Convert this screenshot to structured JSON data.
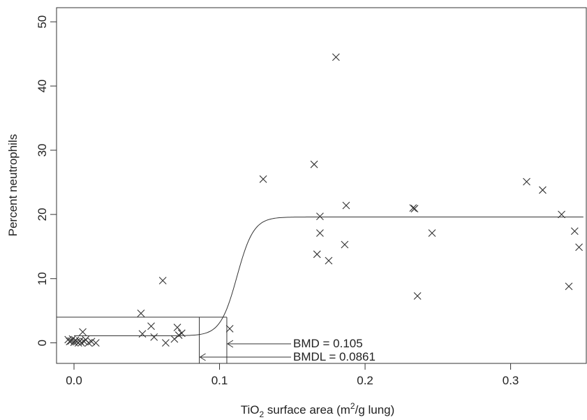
{
  "chart_data": {
    "type": "scatter",
    "title": "",
    "xlabel_parts": {
      "a": "TiO",
      "sub": "2",
      "b": " surface area (m",
      "sup": "2",
      "c": "/g lung)"
    },
    "ylabel": "Percent neutrophils",
    "xlim": [
      -0.012,
      0.352
    ],
    "ylim": [
      -3.2,
      52.2
    ],
    "x_ticks": [
      0.0,
      0.1,
      0.2,
      0.3
    ],
    "x_tick_labels": [
      "0.0",
      "0.1",
      "0.2",
      "0.3"
    ],
    "y_ticks": [
      0,
      10,
      20,
      30,
      40,
      50
    ],
    "y_tick_labels": [
      "0",
      "10",
      "20",
      "30",
      "40",
      "50"
    ],
    "grid": false,
    "marker": "x",
    "points": [
      [
        -0.004,
        0.5
      ],
      [
        -0.003,
        0.2
      ],
      [
        -0.002,
        0.3
      ],
      [
        -0.001,
        0.6
      ],
      [
        0.0,
        0.1
      ],
      [
        0.001,
        0.4
      ],
      [
        0.002,
        0.2
      ],
      [
        0.003,
        0.0
      ],
      [
        0.004,
        0.3
      ],
      [
        0.005,
        0.0
      ],
      [
        0.006,
        1.7
      ],
      [
        0.007,
        0.2
      ],
      [
        0.008,
        0.5
      ],
      [
        0.01,
        0.0
      ],
      [
        0.012,
        0.2
      ],
      [
        0.015,
        0.0
      ],
      [
        0.046,
        4.6
      ],
      [
        0.047,
        1.4
      ],
      [
        0.053,
        2.6
      ],
      [
        0.055,
        0.9
      ],
      [
        0.061,
        9.7
      ],
      [
        0.063,
        0.0
      ],
      [
        0.069,
        0.6
      ],
      [
        0.071,
        2.4
      ],
      [
        0.072,
        1.2
      ],
      [
        0.074,
        1.5
      ],
      [
        0.107,
        2.2
      ],
      [
        0.13,
        25.5
      ],
      [
        0.165,
        27.8
      ],
      [
        0.167,
        13.8
      ],
      [
        0.169,
        19.7
      ],
      [
        0.169,
        17.1
      ],
      [
        0.175,
        12.8
      ],
      [
        0.18,
        44.5
      ],
      [
        0.186,
        15.3
      ],
      [
        0.187,
        21.4
      ],
      [
        0.233,
        21.0
      ],
      [
        0.234,
        20.9
      ],
      [
        0.236,
        7.3
      ],
      [
        0.246,
        17.1
      ],
      [
        0.311,
        25.1
      ],
      [
        0.322,
        23.8
      ],
      [
        0.335,
        20.0
      ],
      [
        0.34,
        8.8
      ],
      [
        0.344,
        17.4
      ],
      [
        0.347,
        14.9
      ]
    ],
    "fitted_curve": {
      "model": "logistic",
      "baseline": 1.1,
      "plateau": 19.6,
      "midpoint": 0.112,
      "slope": 175,
      "x_range": [
        0.0,
        0.35
      ]
    },
    "bmr_level": 4.0,
    "bmd": 0.105,
    "bmdl": 0.0861,
    "annotations": {
      "bmd_label": "BMD = 0.105",
      "bmdl_label": "BMDL = 0.0861"
    }
  }
}
